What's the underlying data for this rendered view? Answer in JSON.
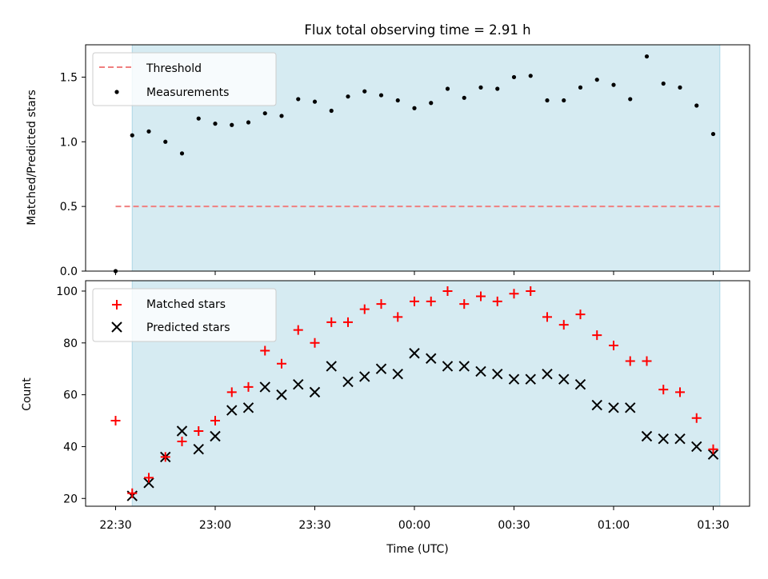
{
  "title": "Flux total observing time = 2.91 h",
  "colors": {
    "shade": "#add8e6",
    "threshold": "#f08080",
    "measurements": "#000000",
    "matched": "#ff0000",
    "predicted": "#000000"
  },
  "chart_data": [
    {
      "type": "scatter",
      "ylabel": "Matched/Predicted stars",
      "ylim": [
        0,
        1.75
      ],
      "y_ticks": [
        "0.0",
        "0.5",
        "1.0",
        "1.5"
      ],
      "legend": [
        "Threshold",
        "Measurements"
      ],
      "legend_position": "top-left",
      "shaded_interval": [
        "22:35",
        "01:32"
      ],
      "threshold": 0.5,
      "series": [
        {
          "name": "Measurements",
          "marker": "dot",
          "x": [
            "22:30",
            "22:35",
            "22:40",
            "22:45",
            "22:50",
            "22:55",
            "23:00",
            "23:05",
            "23:10",
            "23:15",
            "23:20",
            "23:25",
            "23:30",
            "23:35",
            "23:40",
            "23:45",
            "23:50",
            "23:55",
            "00:00",
            "00:05",
            "00:10",
            "00:15",
            "00:20",
            "00:25",
            "00:30",
            "00:35",
            "00:40",
            "00:45",
            "00:50",
            "00:55",
            "01:00",
            "01:05",
            "01:10",
            "01:15",
            "01:20",
            "01:25",
            "01:30"
          ],
          "values": [
            0.0,
            1.05,
            1.08,
            1.0,
            0.91,
            1.18,
            1.14,
            1.13,
            1.15,
            1.22,
            1.2,
            1.33,
            1.31,
            1.24,
            1.35,
            1.39,
            1.36,
            1.32,
            1.26,
            1.3,
            1.41,
            1.34,
            1.42,
            1.41,
            1.5,
            1.51,
            1.32,
            1.32,
            1.42,
            1.48,
            1.44,
            1.33,
            1.66,
            1.45,
            1.42,
            1.28,
            1.06
          ]
        }
      ]
    },
    {
      "type": "scatter",
      "xlabel": "Time (UTC)",
      "ylabel": "Count",
      "ylim": [
        17,
        104
      ],
      "y_ticks": [
        "20",
        "40",
        "60",
        "80",
        "100"
      ],
      "x_ticks": [
        "22:30",
        "23:00",
        "23:30",
        "00:00",
        "00:30",
        "01:00",
        "01:30"
      ],
      "legend": [
        "Matched stars",
        "Predicted stars"
      ],
      "legend_position": "top-left",
      "shaded_interval": [
        "22:35",
        "01:32"
      ],
      "series": [
        {
          "name": "Matched stars",
          "marker": "plus",
          "x": [
            "22:30",
            "22:35",
            "22:40",
            "22:45",
            "22:50",
            "22:55",
            "23:00",
            "23:05",
            "23:10",
            "23:15",
            "23:20",
            "23:25",
            "23:30",
            "23:35",
            "23:40",
            "23:45",
            "23:50",
            "23:55",
            "00:00",
            "00:05",
            "00:10",
            "00:15",
            "00:20",
            "00:25",
            "00:30",
            "00:35",
            "00:40",
            "00:45",
            "00:50",
            "00:55",
            "01:00",
            "01:05",
            "01:10",
            "01:15",
            "01:20",
            "01:25",
            "01:30"
          ],
          "values": [
            50,
            22,
            28,
            36,
            42,
            46,
            50,
            61,
            63,
            77,
            72,
            85,
            80,
            88,
            88,
            93,
            95,
            90,
            96,
            96,
            100,
            95,
            98,
            96,
            99,
            100,
            90,
            87,
            91,
            83,
            79,
            73,
            73,
            62,
            61,
            51,
            39
          ]
        },
        {
          "name": "Predicted stars",
          "marker": "x",
          "x": [
            "22:35",
            "22:40",
            "22:45",
            "22:50",
            "22:55",
            "23:00",
            "23:05",
            "23:10",
            "23:15",
            "23:20",
            "23:25",
            "23:30",
            "23:35",
            "23:40",
            "23:45",
            "23:50",
            "23:55",
            "00:00",
            "00:05",
            "00:10",
            "00:15",
            "00:20",
            "00:25",
            "00:30",
            "00:35",
            "00:40",
            "00:45",
            "00:50",
            "00:55",
            "01:00",
            "01:05",
            "01:10",
            "01:15",
            "01:20",
            "01:25",
            "01:30"
          ],
          "values": [
            21,
            26,
            36,
            46,
            39,
            44,
            54,
            55,
            63,
            60,
            64,
            61,
            71,
            65,
            67,
            70,
            68,
            76,
            74,
            71,
            71,
            69,
            68,
            66,
            66,
            68,
            66,
            64,
            56,
            55,
            55,
            44,
            43,
            43,
            40,
            37
          ]
        }
      ]
    }
  ]
}
